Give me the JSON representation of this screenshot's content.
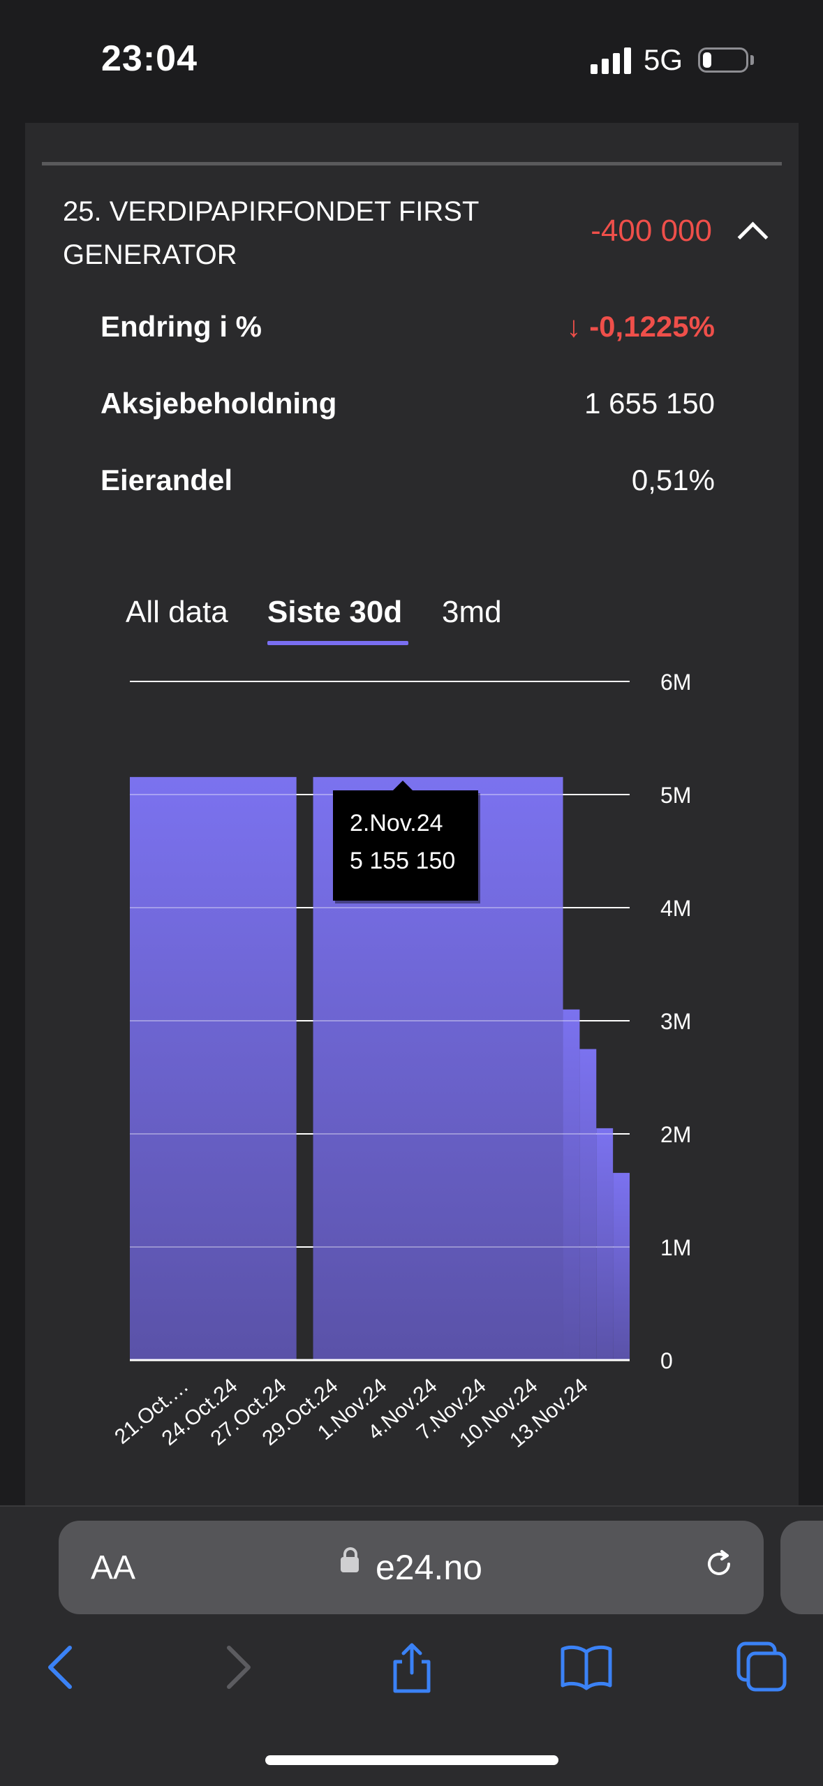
{
  "status_bar": {
    "time": "23:04",
    "network": "5G"
  },
  "holding": {
    "title": "25. VERDIPAPIRFONDET FIRST GENERATOR",
    "change": "-400 000",
    "details": [
      {
        "label": "Endring i %",
        "value": "↓ -0,1225%"
      },
      {
        "label": "Aksjebeholdning",
        "value": "1 655 150"
      },
      {
        "label": "Eierandel",
        "value": "0,51%"
      }
    ]
  },
  "tabs": [
    "All data",
    "Siste 30d",
    "3md"
  ],
  "active_tab": "Siste 30d",
  "colors": {
    "accent": "#7a6ff2",
    "negative": "#ef4f4a",
    "bar_top": "#7b72ef",
    "bar_bottom": "#5a52a8"
  },
  "chart_data": {
    "type": "area",
    "x_tick_labels": [
      "21.Oct.…",
      "24.Oct.24",
      "27.Oct.24",
      "29.Oct.24",
      "1.Nov.24",
      "4.Nov.24",
      "7.Nov.24",
      "10.Nov.24",
      "13.Nov.24"
    ],
    "y_tick_labels": [
      "0",
      "1M",
      "2M",
      "3M",
      "4M",
      "5M",
      "6M"
    ],
    "ylim": [
      0,
      6000000
    ],
    "series": [
      {
        "values_by_day": [
          {
            "day": 0,
            "value": 5155150
          },
          {
            "day": 10,
            "gap": true
          },
          {
            "day": 11,
            "value": 5155150
          },
          {
            "day": 26,
            "value": 3100000
          },
          {
            "day": 27,
            "value": 2750000
          },
          {
            "day": 28,
            "value": 2050000
          },
          {
            "day": 29,
            "value": 1655150
          }
        ]
      }
    ],
    "tooltip": {
      "date": "2.Nov.24",
      "value": "5 155 150"
    },
    "grid": true
  },
  "browser": {
    "text_size_label": "AA",
    "url": "e24.no"
  }
}
